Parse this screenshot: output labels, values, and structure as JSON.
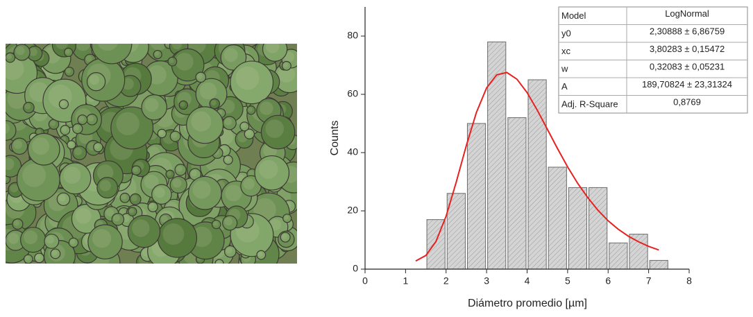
{
  "chart_data": {
    "type": "histogram",
    "x_label": "Diámetro promedio [µm]",
    "y_label": "Counts",
    "bins": [
      1.5,
      2,
      2.5,
      3,
      3.5,
      4,
      4.5,
      5,
      5.5,
      6,
      6.5,
      7,
      7.5
    ],
    "values": [
      17,
      26,
      50,
      78,
      52,
      65,
      35,
      28,
      28,
      9,
      12,
      3
    ],
    "color": "#d4d4d4",
    "fit": {
      "color": "#e8201e",
      "x": [
        1.25,
        1.5,
        1.75,
        2,
        2.25,
        2.5,
        2.75,
        3,
        3.25,
        3.5,
        3.75,
        4,
        4.25,
        4.5,
        4.75,
        5,
        5.25,
        5.5,
        5.75,
        6,
        6.25,
        6.5,
        6.75,
        7,
        7.25
      ],
      "values": [
        2.8,
        4.7,
        9.5,
        18.2,
        29.8,
        42.4,
        53.8,
        62.2,
        66.7,
        67.5,
        65.2,
        60.6,
        54.6,
        48.0,
        41.4,
        35.1,
        29.4,
        24.5,
        20.2,
        16.6,
        13.7,
        11.3,
        9.4,
        7.8,
        6.6
      ]
    },
    "xlim": [
      0,
      8
    ],
    "ylim": [
      0,
      90
    ],
    "xticks": [
      0,
      1,
      2,
      3,
      4,
      5,
      6,
      7,
      8
    ],
    "yticks": [
      0,
      20,
      40,
      60,
      80
    ],
    "fit_table": {
      "rows": [
        [
          "Model",
          "LogNormal"
        ],
        [
          "y0",
          "2,30888 ± 6,86759"
        ],
        [
          "xc",
          "3,80283 ± 0,15472"
        ],
        [
          "w",
          "0,32083 ± 0,05231"
        ],
        [
          "A",
          "189,70824 ± 23,31324"
        ],
        [
          "Adj. R-Square",
          "0,8769"
        ]
      ]
    }
  }
}
